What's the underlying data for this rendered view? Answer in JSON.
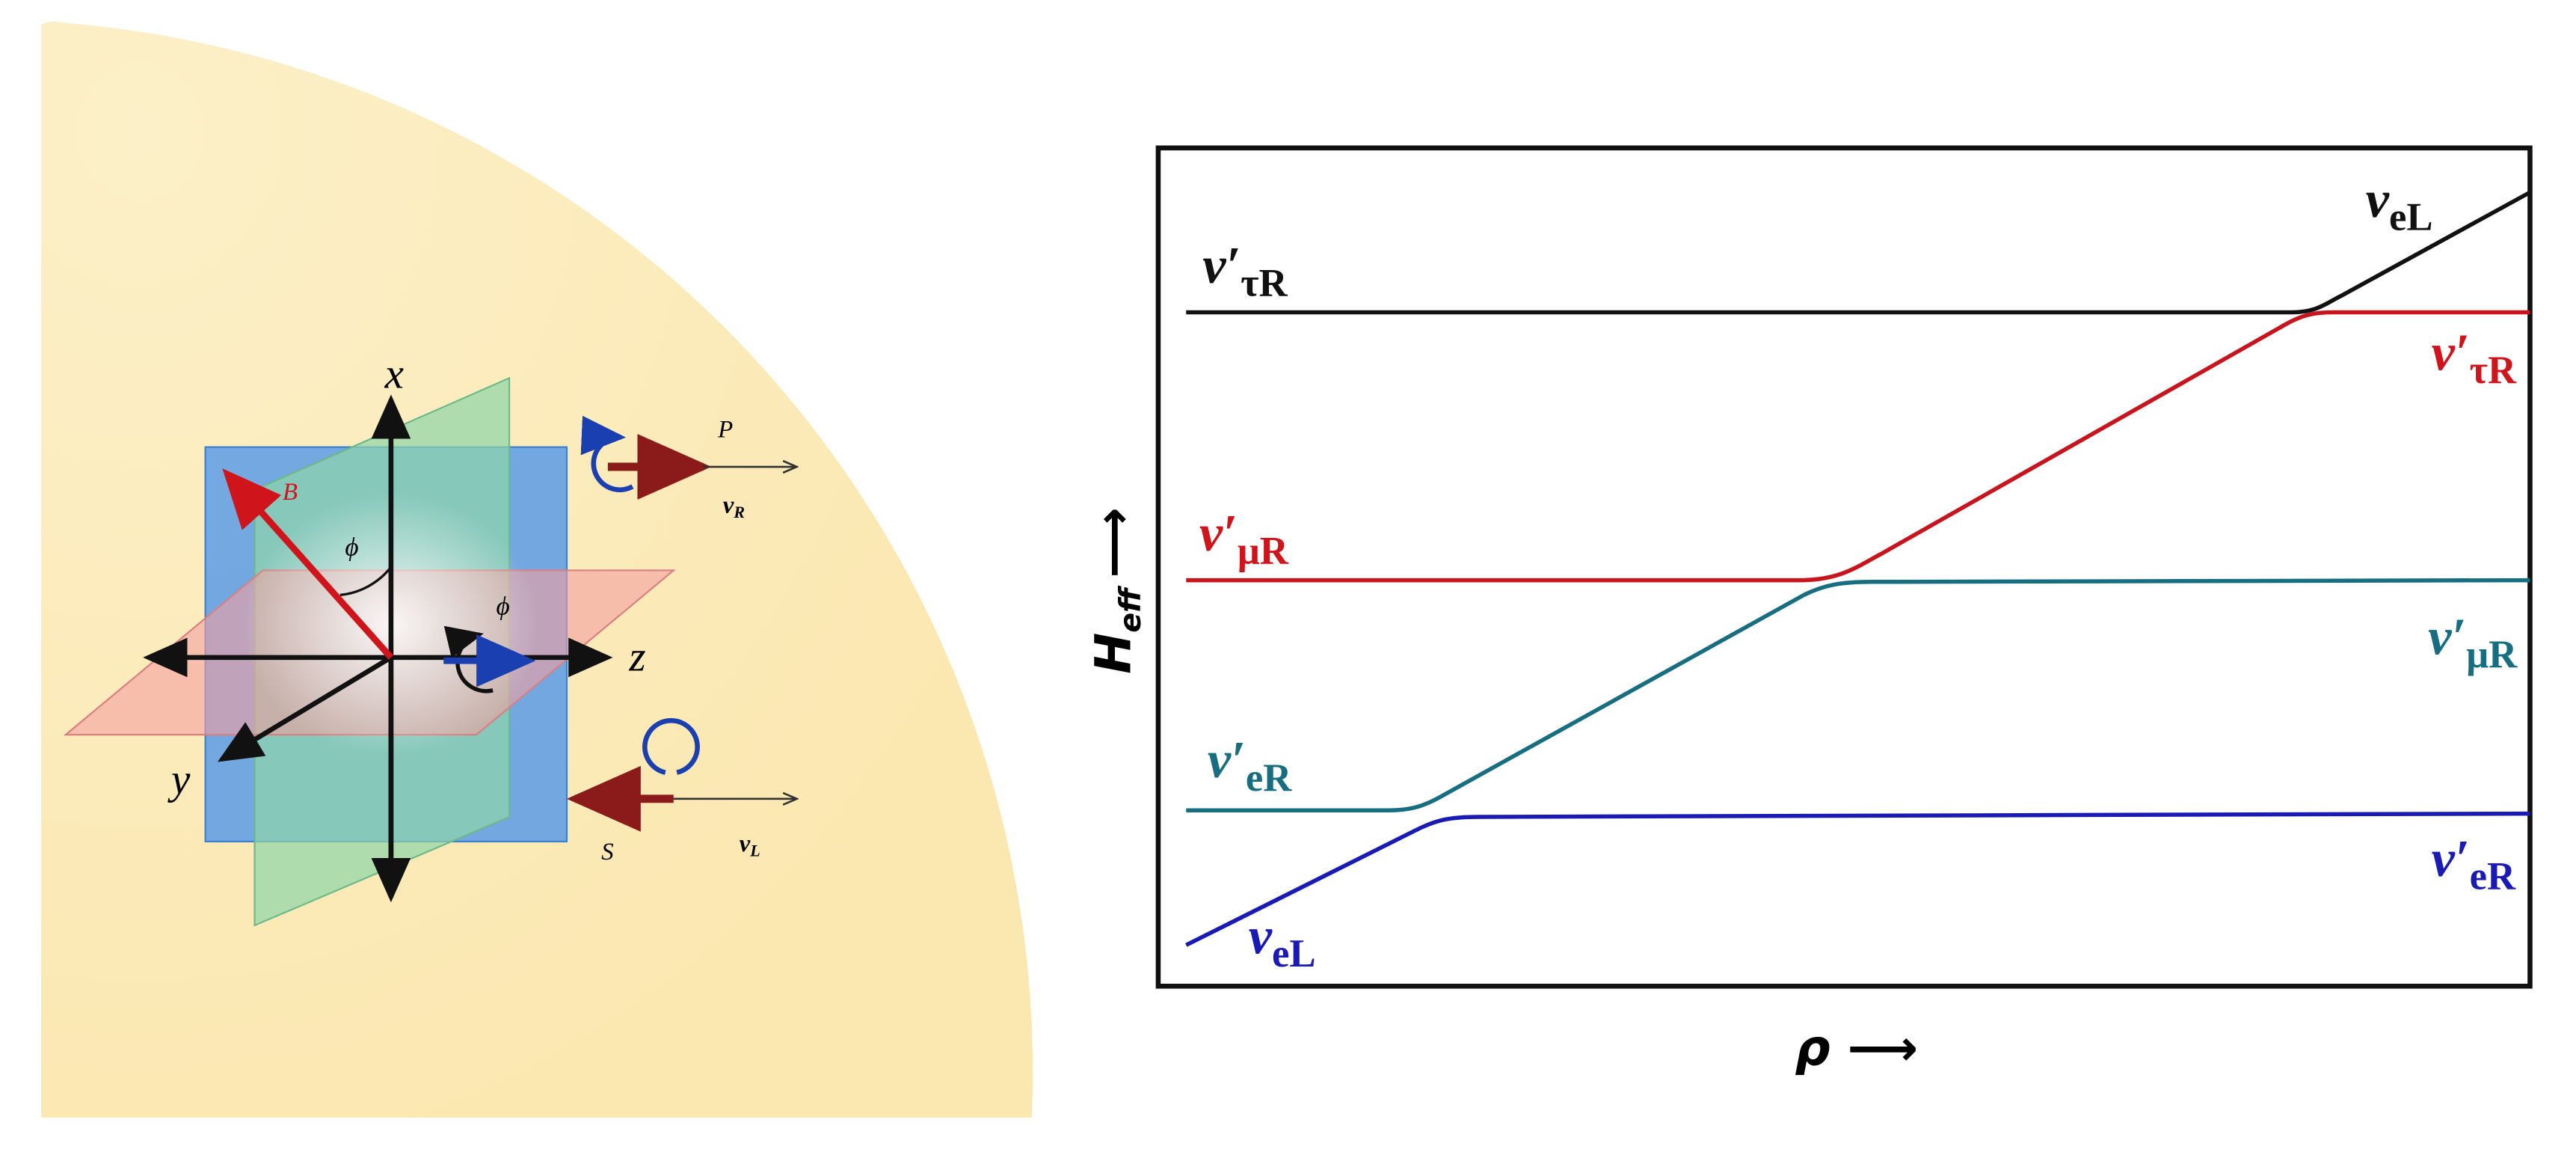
{
  "left_panel": {
    "axis_labels": {
      "x": "x",
      "y": "y",
      "z": "z"
    },
    "vector_labels": {
      "B": "B",
      "P": "P",
      "S": "S"
    },
    "angle_labels": [
      "ϕ",
      "ϕ"
    ],
    "particles": [
      {
        "main": "ν",
        "sub": "R"
      },
      {
        "main": "ν",
        "sub": "L"
      }
    ]
  },
  "right_panel": {
    "y_label": {
      "main": "H",
      "sub": "eff",
      "arrow": "⟶"
    },
    "x_label": "ρ ⟶",
    "curve_labels": [
      {
        "main": "ν′",
        "sub": "τR",
        "color": "#111111"
      },
      {
        "main": "ν",
        "sub": "eL",
        "color": "#111111"
      },
      {
        "main": "ν′",
        "sub": "τR",
        "color": "#d0141c"
      },
      {
        "main": "ν′",
        "sub": "μR",
        "color": "#d0141c"
      },
      {
        "main": "ν′",
        "sub": "μR",
        "color": "#166e80"
      },
      {
        "main": "ν′",
        "sub": "eR",
        "color": "#166e80"
      },
      {
        "main": "ν′",
        "sub": "eR",
        "color": "#1a1ab4"
      },
      {
        "main": "ν",
        "sub": "eL",
        "color": "#1a1ab4"
      }
    ]
  }
}
